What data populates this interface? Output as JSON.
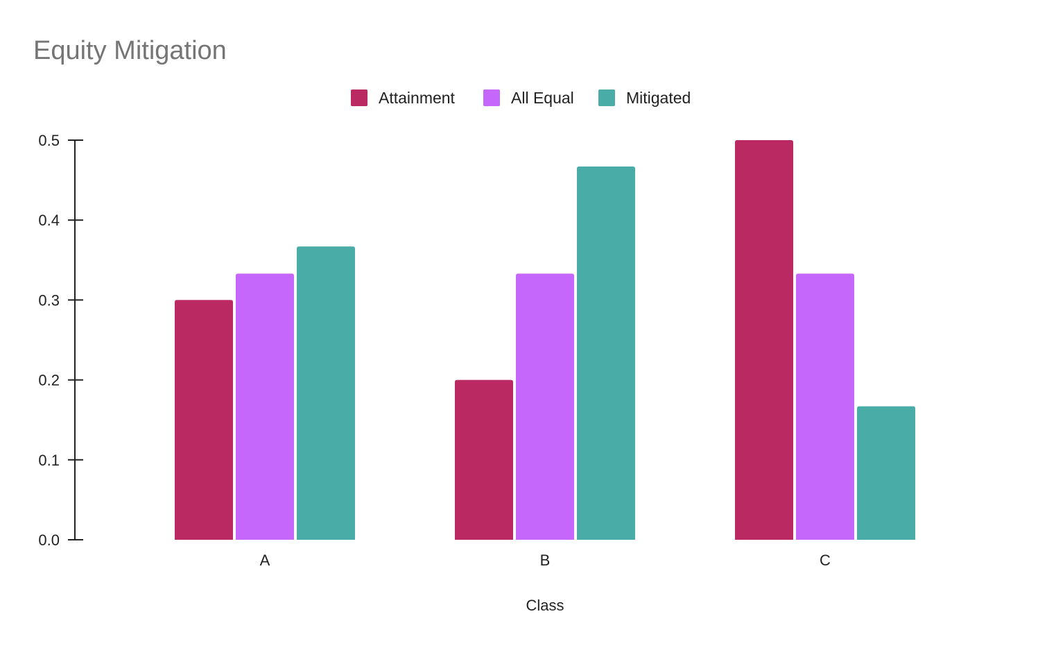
{
  "chart_data": {
    "type": "bar",
    "title": "Equity Mitigation",
    "xlabel": "Class",
    "ylabel": "",
    "categories": [
      "A",
      "B",
      "C"
    ],
    "series": [
      {
        "name": "Attainment",
        "color": "#bb2962",
        "values": [
          0.3,
          0.2,
          0.5
        ]
      },
      {
        "name": "All Equal",
        "color": "#c667fb",
        "values": [
          0.333,
          0.333,
          0.333
        ]
      },
      {
        "name": "Mitigated",
        "color": "#4aaca6",
        "values": [
          0.367,
          0.467,
          0.167
        ]
      }
    ],
    "ylim": [
      0,
      0.5
    ],
    "yticks": [
      "0.0",
      "0.1",
      "0.2",
      "0.3",
      "0.4",
      "0.5"
    ],
    "grid": false,
    "legend_position": "top-center"
  }
}
